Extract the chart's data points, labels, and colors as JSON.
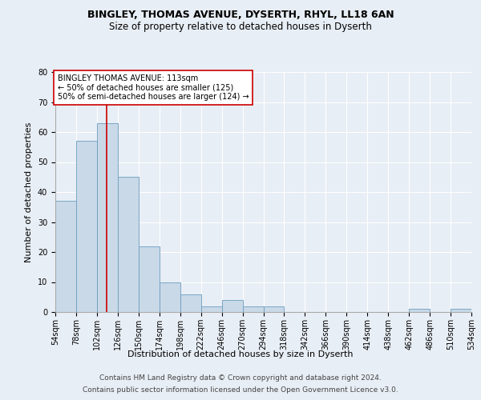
{
  "title_line1": "BINGLEY, THOMAS AVENUE, DYSERTH, RHYL, LL18 6AN",
  "title_line2": "Size of property relative to detached houses in Dyserth",
  "xlabel": "Distribution of detached houses by size in Dyserth",
  "ylabel": "Number of detached properties",
  "footer_line1": "Contains HM Land Registry data © Crown copyright and database right 2024.",
  "footer_line2": "Contains public sector information licensed under the Open Government Licence v3.0.",
  "annotation_line1": "BINGLEY THOMAS AVENUE: 113sqm",
  "annotation_line2": "← 50% of detached houses are smaller (125)",
  "annotation_line3": "50% of semi-detached houses are larger (124) →",
  "bin_edges": [
    54,
    78,
    102,
    126,
    150,
    174,
    198,
    222,
    246,
    270,
    294,
    318,
    342,
    366,
    390,
    414,
    438,
    462,
    486,
    510,
    534
  ],
  "bar_values": [
    37,
    57,
    63,
    45,
    22,
    10,
    6,
    2,
    4,
    2,
    2,
    0,
    0,
    0,
    0,
    0,
    0,
    1,
    0,
    1
  ],
  "bar_color": "#c9d9e8",
  "bar_edge_color": "#6a9dc0",
  "red_line_x": 113,
  "ylim": [
    0,
    80
  ],
  "yticks": [
    0,
    10,
    20,
    30,
    40,
    50,
    60,
    70,
    80
  ],
  "background_color": "#e8eef5",
  "plot_bg_color": "#e8eef5",
  "grid_color": "#ffffff",
  "annotation_box_color": "#ffffff",
  "annotation_box_edge_color": "#cc0000",
  "red_line_color": "#cc0000",
  "title_fontsize": 9,
  "subtitle_fontsize": 8.5,
  "tick_label_fontsize": 7,
  "ylabel_fontsize": 8,
  "xlabel_fontsize": 8,
  "annotation_fontsize": 7,
  "footer_fontsize": 6.5
}
